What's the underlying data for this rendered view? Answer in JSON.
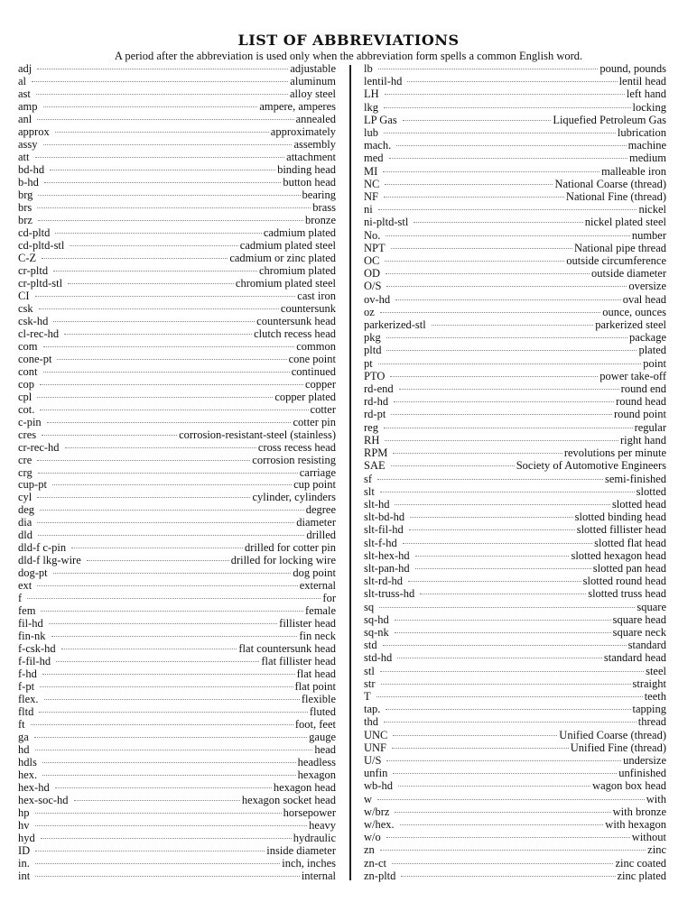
{
  "title": "LIST OF ABBREVIATIONS",
  "subtitle": "A period after the abbreviation is used only when the abbreviation form spells a common English word.",
  "left_column": [
    {
      "abbr": "adj",
      "meaning": "adjustable"
    },
    {
      "abbr": "al",
      "meaning": "aluminum"
    },
    {
      "abbr": "ast",
      "meaning": "alloy steel"
    },
    {
      "abbr": "amp",
      "meaning": "ampere, amperes"
    },
    {
      "abbr": "anl",
      "meaning": "annealed"
    },
    {
      "abbr": "approx",
      "meaning": "approximately"
    },
    {
      "abbr": "assy",
      "meaning": "assembly"
    },
    {
      "abbr": "att",
      "meaning": "attachment"
    },
    {
      "abbr": "bd-hd",
      "meaning": "binding head"
    },
    {
      "abbr": "b-hd",
      "meaning": "button head"
    },
    {
      "abbr": "brg",
      "meaning": "bearing"
    },
    {
      "abbr": "brs",
      "meaning": "brass"
    },
    {
      "abbr": "brz",
      "meaning": "bronze"
    },
    {
      "abbr": "cd-pltd",
      "meaning": "cadmium plated"
    },
    {
      "abbr": "cd-pltd-stl",
      "meaning": "cadmium plated steel"
    },
    {
      "abbr": "C-Z",
      "meaning": "cadmium or zinc plated"
    },
    {
      "abbr": "cr-pltd",
      "meaning": "chromium plated"
    },
    {
      "abbr": "cr-pltd-stl",
      "meaning": "chromium plated steel"
    },
    {
      "abbr": "CI",
      "meaning": "cast iron"
    },
    {
      "abbr": "csk",
      "meaning": "countersunk"
    },
    {
      "abbr": "csk-hd",
      "meaning": "countersunk head"
    },
    {
      "abbr": "cl-rec-hd",
      "meaning": "clutch recess head"
    },
    {
      "abbr": "com",
      "meaning": "common"
    },
    {
      "abbr": "cone-pt",
      "meaning": "cone point"
    },
    {
      "abbr": "cont",
      "meaning": "continued"
    },
    {
      "abbr": "cop",
      "meaning": "copper"
    },
    {
      "abbr": "cpl",
      "meaning": "copper plated"
    },
    {
      "abbr": "cot.",
      "meaning": "cotter"
    },
    {
      "abbr": "c-pin",
      "meaning": "cotter pin"
    },
    {
      "abbr": "cres",
      "meaning": "corrosion-resistant-steel (stainless)"
    },
    {
      "abbr": "cr-rec-hd",
      "meaning": "cross recess head"
    },
    {
      "abbr": "cre",
      "meaning": "corrosion resisting"
    },
    {
      "abbr": "crg",
      "meaning": "carriage"
    },
    {
      "abbr": "cup-pt",
      "meaning": "cup point"
    },
    {
      "abbr": "cyl",
      "meaning": "cylinder, cylinders"
    },
    {
      "abbr": "deg",
      "meaning": "degree"
    },
    {
      "abbr": "dia",
      "meaning": "diameter"
    },
    {
      "abbr": "dld",
      "meaning": "drilled"
    },
    {
      "abbr": "dld-f c-pin",
      "meaning": "drilled for cotter pin"
    },
    {
      "abbr": "dld-f lkg-wire",
      "meaning": "drilled for locking wire"
    },
    {
      "abbr": "dog-pt",
      "meaning": "dog point"
    },
    {
      "abbr": "ext",
      "meaning": "external"
    },
    {
      "abbr": "f",
      "meaning": "for"
    },
    {
      "abbr": "fem",
      "meaning": "female"
    },
    {
      "abbr": "fil-hd",
      "meaning": "fillister head"
    },
    {
      "abbr": "fin-nk",
      "meaning": "fin neck"
    },
    {
      "abbr": "f-csk-hd",
      "meaning": "flat countersunk head"
    },
    {
      "abbr": "f-fil-hd",
      "meaning": "flat fillister head"
    },
    {
      "abbr": "f-hd",
      "meaning": "flat head"
    },
    {
      "abbr": "f-pt",
      "meaning": "flat point"
    },
    {
      "abbr": "flex.",
      "meaning": "flexible"
    },
    {
      "abbr": "fltd",
      "meaning": "fluted"
    },
    {
      "abbr": "ft",
      "meaning": "foot, feet"
    },
    {
      "abbr": "ga",
      "meaning": "gauge"
    },
    {
      "abbr": "hd",
      "meaning": "head"
    },
    {
      "abbr": "hdls",
      "meaning": "headless"
    },
    {
      "abbr": "hex.",
      "meaning": "hexagon"
    },
    {
      "abbr": "hex-hd",
      "meaning": "hexagon head"
    },
    {
      "abbr": "hex-soc-hd",
      "meaning": "hexagon socket head"
    },
    {
      "abbr": "hp",
      "meaning": "horsepower"
    },
    {
      "abbr": "hv",
      "meaning": "heavy"
    },
    {
      "abbr": "hyd",
      "meaning": "hydraulic"
    },
    {
      "abbr": "ID",
      "meaning": "inside diameter"
    },
    {
      "abbr": "in.",
      "meaning": "inch, inches"
    },
    {
      "abbr": "int",
      "meaning": "internal"
    }
  ],
  "right_column": [
    {
      "abbr": "lb",
      "meaning": "pound, pounds"
    },
    {
      "abbr": "lentil-hd",
      "meaning": "lentil head"
    },
    {
      "abbr": "LH",
      "meaning": "left hand"
    },
    {
      "abbr": "lkg",
      "meaning": "locking"
    },
    {
      "abbr": "LP Gas",
      "meaning": "Liquefied Petroleum Gas"
    },
    {
      "abbr": "lub",
      "meaning": "lubrication"
    },
    {
      "abbr": "mach.",
      "meaning": "machine"
    },
    {
      "abbr": "med",
      "meaning": "medium"
    },
    {
      "abbr": "MI",
      "meaning": "malleable iron"
    },
    {
      "abbr": "NC",
      "meaning": "National Coarse (thread)"
    },
    {
      "abbr": "NF",
      "meaning": "National Fine (thread)"
    },
    {
      "abbr": "ni",
      "meaning": "nickel"
    },
    {
      "abbr": "ni-pltd-stl",
      "meaning": "nickel plated steel"
    },
    {
      "abbr": "No.",
      "meaning": "number"
    },
    {
      "abbr": "NPT",
      "meaning": "National pipe thread"
    },
    {
      "abbr": "OC",
      "meaning": "outside circumference"
    },
    {
      "abbr": "OD",
      "meaning": "outside diameter"
    },
    {
      "abbr": "O/S",
      "meaning": "oversize"
    },
    {
      "abbr": "ov-hd",
      "meaning": "oval head"
    },
    {
      "abbr": "oz",
      "meaning": "ounce, ounces"
    },
    {
      "abbr": "parkerized-stl",
      "meaning": "parkerized steel"
    },
    {
      "abbr": "pkg",
      "meaning": "package"
    },
    {
      "abbr": "pltd",
      "meaning": "plated"
    },
    {
      "abbr": "pt",
      "meaning": "point"
    },
    {
      "abbr": "PTO",
      "meaning": "power take-off"
    },
    {
      "abbr": "rd-end",
      "meaning": "round end"
    },
    {
      "abbr": "rd-hd",
      "meaning": "round head"
    },
    {
      "abbr": "rd-pt",
      "meaning": "round point"
    },
    {
      "abbr": "reg",
      "meaning": "regular"
    },
    {
      "abbr": "RH",
      "meaning": "right hand"
    },
    {
      "abbr": "RPM",
      "meaning": "revolutions per minute"
    },
    {
      "abbr": "SAE",
      "meaning": "Society of Automotive Engineers"
    },
    {
      "abbr": "sf",
      "meaning": "semi-finished"
    },
    {
      "abbr": "slt",
      "meaning": "slotted"
    },
    {
      "abbr": "slt-hd",
      "meaning": "slotted head"
    },
    {
      "abbr": "slt-bd-hd",
      "meaning": "slotted binding head"
    },
    {
      "abbr": "slt-fil-hd",
      "meaning": "slotted fillister head"
    },
    {
      "abbr": "slt-f-hd",
      "meaning": "slotted flat head"
    },
    {
      "abbr": "slt-hex-hd",
      "meaning": "slotted hexagon head"
    },
    {
      "abbr": "slt-pan-hd",
      "meaning": "slotted pan head"
    },
    {
      "abbr": "slt-rd-hd",
      "meaning": "slotted round head"
    },
    {
      "abbr": "slt-truss-hd",
      "meaning": "slotted truss head"
    },
    {
      "abbr": "sq",
      "meaning": "square"
    },
    {
      "abbr": "sq-hd",
      "meaning": "square head"
    },
    {
      "abbr": "sq-nk",
      "meaning": "square neck"
    },
    {
      "abbr": "std",
      "meaning": "standard"
    },
    {
      "abbr": "std-hd",
      "meaning": "standard head"
    },
    {
      "abbr": "stl",
      "meaning": "steel"
    },
    {
      "abbr": "str",
      "meaning": "straight"
    },
    {
      "abbr": "T",
      "meaning": "teeth"
    },
    {
      "abbr": "tap.",
      "meaning": "tapping"
    },
    {
      "abbr": "thd",
      "meaning": "thread"
    },
    {
      "abbr": "UNC",
      "meaning": "Unified Coarse (thread)"
    },
    {
      "abbr": "UNF",
      "meaning": "Unified Fine (thread)"
    },
    {
      "abbr": "U/S",
      "meaning": "undersize"
    },
    {
      "abbr": "unfin",
      "meaning": "unfinished"
    },
    {
      "abbr": "wb-hd",
      "meaning": "wagon box head"
    },
    {
      "abbr": "w",
      "meaning": "with"
    },
    {
      "abbr": "w/brz",
      "meaning": "with bronze"
    },
    {
      "abbr": "w/hex.",
      "meaning": "with hexagon"
    },
    {
      "abbr": "w/o",
      "meaning": "without"
    },
    {
      "abbr": "zn",
      "meaning": "zinc"
    },
    {
      "abbr": "zn-ct",
      "meaning": "zinc coated"
    },
    {
      "abbr": "zn-pltd",
      "meaning": "zinc plated"
    }
  ]
}
